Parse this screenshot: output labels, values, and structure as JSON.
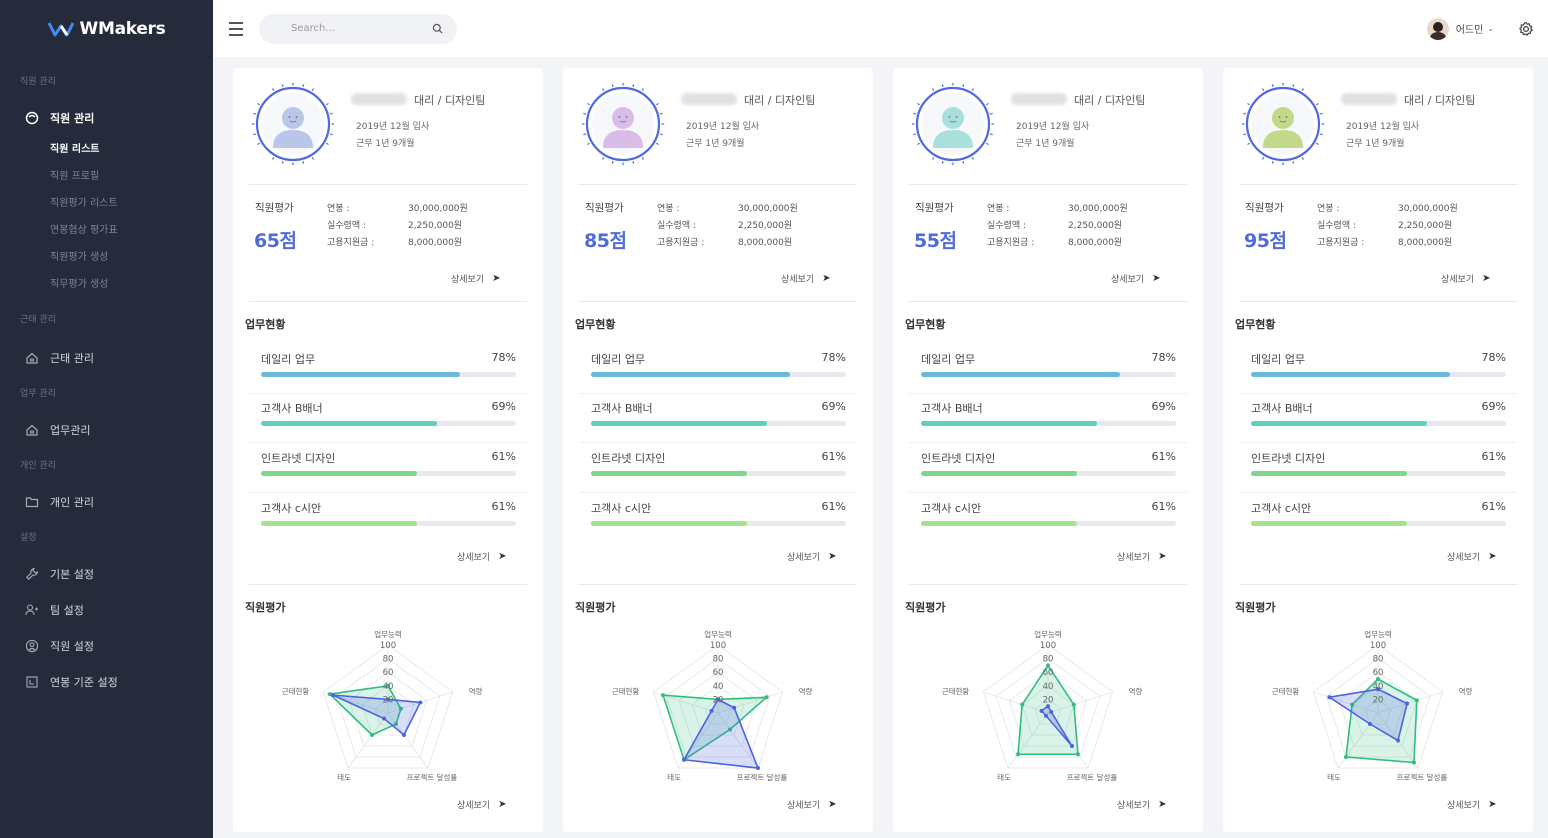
{
  "app": {
    "name": "WMakers"
  },
  "search": {
    "placeholder": "Search..."
  },
  "user": {
    "name": "어드민"
  },
  "sidebar": {
    "sections": [
      {
        "title": "직원 관리"
      },
      {
        "title": "근태 관리"
      },
      {
        "title": "업무 관리"
      },
      {
        "title": "개인 관리"
      },
      {
        "title": "설정"
      }
    ],
    "items": [
      {
        "label": "직원 관리"
      },
      {
        "label": "근태 관리"
      },
      {
        "label": "업무관리"
      },
      {
        "label": "개인 관리"
      },
      {
        "label": "기본 설정"
      },
      {
        "label": "팀 설정"
      },
      {
        "label": "직원 설정"
      },
      {
        "label": "연봉 기준 설정"
      }
    ],
    "subitems": [
      {
        "label": "직원 리스트"
      },
      {
        "label": "직원 프로필"
      },
      {
        "label": "직원평가 리스트"
      },
      {
        "label": "연봉협상 평가표"
      },
      {
        "label": "직원평가 생성"
      },
      {
        "label": "직무평가 생성"
      }
    ]
  },
  "labels": {
    "salary": "연봉 :",
    "net_pay": "실수령액 :",
    "support": "고용지원금 :",
    "eval": "직원평가",
    "work_status": "업무현황",
    "eval_title": "직원평가",
    "more": "상세보기"
  },
  "cards": [
    {
      "rank": "대리 / 디자인팀",
      "joined": "2019년 12월 입사",
      "tenure": "근무 1년 9개월",
      "score": "65점",
      "salary": "30,000,000원",
      "net_pay": "2,250,000원",
      "support": "8,000,000원",
      "avatar_color": "#b9c6ea",
      "tasks": [
        {
          "name": "데일리 업무",
          "pct": "78%",
          "value": 78,
          "color": "#6bb8db"
        },
        {
          "name": "고객사 B배너",
          "pct": "69%",
          "value": 69,
          "color": "#5fcfbf"
        },
        {
          "name": "인트라넷 디자인",
          "pct": "61%",
          "value": 61,
          "color": "#7ed88a"
        },
        {
          "name": "고객사 c시안",
          "pct": "61%",
          "value": 61,
          "color": "#a4e28e"
        }
      ],
      "radar": {
        "green": [
          40,
          20,
          20,
          40,
          90
        ],
        "blue": [
          20,
          50,
          40,
          10,
          85
        ]
      }
    },
    {
      "rank": "대리 / 디자인팀",
      "joined": "2019년 12월 입사",
      "tenure": "근무 1년 9개월",
      "score": "85점",
      "salary": "30,000,000원",
      "net_pay": "2,250,000원",
      "support": "8,000,000원",
      "avatar_color": "#d9bde6",
      "tasks": [
        {
          "name": "데일리 업무",
          "pct": "78%",
          "value": 78,
          "color": "#6bb8db"
        },
        {
          "name": "고객사 B배너",
          "pct": "69%",
          "value": 69,
          "color": "#5fcfbf"
        },
        {
          "name": "인트라넷 디자인",
          "pct": "61%",
          "value": 61,
          "color": "#7ed88a"
        },
        {
          "name": "고객사 c시안",
          "pct": "61%",
          "value": 61,
          "color": "#a4e28e"
        }
      ],
      "radar": {
        "green": [
          20,
          75,
          30,
          85,
          85
        ],
        "blue": [
          20,
          25,
          100,
          85,
          10
        ]
      }
    },
    {
      "rank": "대리 / 디자인팀",
      "joined": "2019년 12월 입사",
      "tenure": "근무 1년 9개월",
      "score": "55점",
      "salary": "30,000,000원",
      "net_pay": "2,250,000원",
      "support": "8,000,000원",
      "avatar_color": "#a9e0dc",
      "tasks": [
        {
          "name": "데일리 업무",
          "pct": "78%",
          "value": 78,
          "color": "#6bb8db"
        },
        {
          "name": "고객사 B배너",
          "pct": "69%",
          "value": 69,
          "color": "#5fcfbf"
        },
        {
          "name": "인트라넷 디자인",
          "pct": "61%",
          "value": 61,
          "color": "#7ed88a"
        },
        {
          "name": "고객사 c시안",
          "pct": "61%",
          "value": 61,
          "color": "#a4e28e"
        }
      ],
      "radar": {
        "green": [
          70,
          40,
          75,
          75,
          40
        ],
        "blue": [
          10,
          5,
          60,
          5,
          10
        ]
      }
    },
    {
      "rank": "대리 / 디자인팀",
      "joined": "2019년 12월 입사",
      "tenure": "근무 1년 9개월",
      "score": "95점",
      "salary": "30,000,000원",
      "net_pay": "2,250,000원",
      "support": "8,000,000원",
      "avatar_color": "#c3d98a",
      "tasks": [
        {
          "name": "데일리 업무",
          "pct": "78%",
          "value": 78,
          "color": "#6bb8db"
        },
        {
          "name": "고객사 B배너",
          "pct": "69%",
          "value": 69,
          "color": "#5fcfbf"
        },
        {
          "name": "인트라넷 디자인",
          "pct": "61%",
          "value": 61,
          "color": "#7ed88a"
        },
        {
          "name": "고객사 c시안",
          "pct": "61%",
          "value": 61,
          "color": "#a4e28e"
        }
      ],
      "radar": {
        "green": [
          50,
          60,
          90,
          80,
          40
        ],
        "blue": [
          35,
          45,
          50,
          20,
          75
        ]
      }
    }
  ],
  "radar_axes": [
    "업무능력",
    "역량",
    "프로젝트 달성률",
    "태도",
    "근태현황"
  ],
  "radar_ticks": [
    "20",
    "40",
    "60",
    "80",
    "100"
  ],
  "colors": {
    "accent": "#4f6bd9",
    "sidebar": "#262b3b"
  }
}
